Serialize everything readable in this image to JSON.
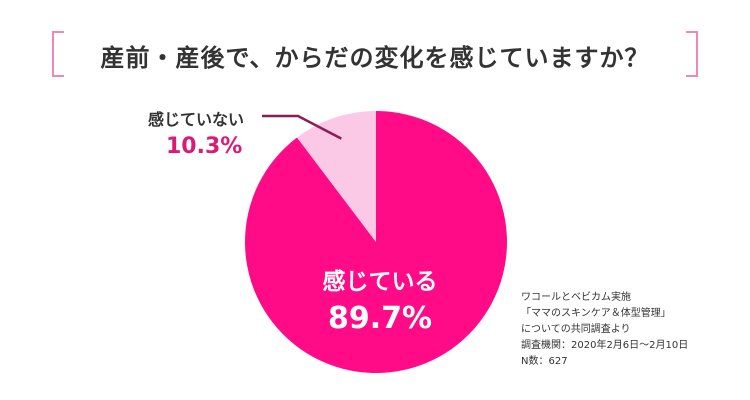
{
  "title": "産前・産後で、からだの変化を感じていますか？",
  "chart_data": {
    "type": "pie",
    "slices": [
      {
        "label": "感じている",
        "value": 89.7,
        "value_text": "89.7%",
        "color": "#ff0a87"
      },
      {
        "label": "感じていない",
        "value": 10.3,
        "value_text": "10.3%",
        "color": "#fbc8e6"
      }
    ]
  },
  "source": {
    "lines": [
      "ワコールとベビカム実施",
      "「ママのスキンケア＆体型管理」",
      "についての共同調査より",
      "調査機関：2020年2月6日〜2月10日",
      "N数：627"
    ]
  },
  "colors": {
    "bracket": "#f287b7",
    "accent_text": "#d81b77",
    "leader": "#8b1c58"
  }
}
